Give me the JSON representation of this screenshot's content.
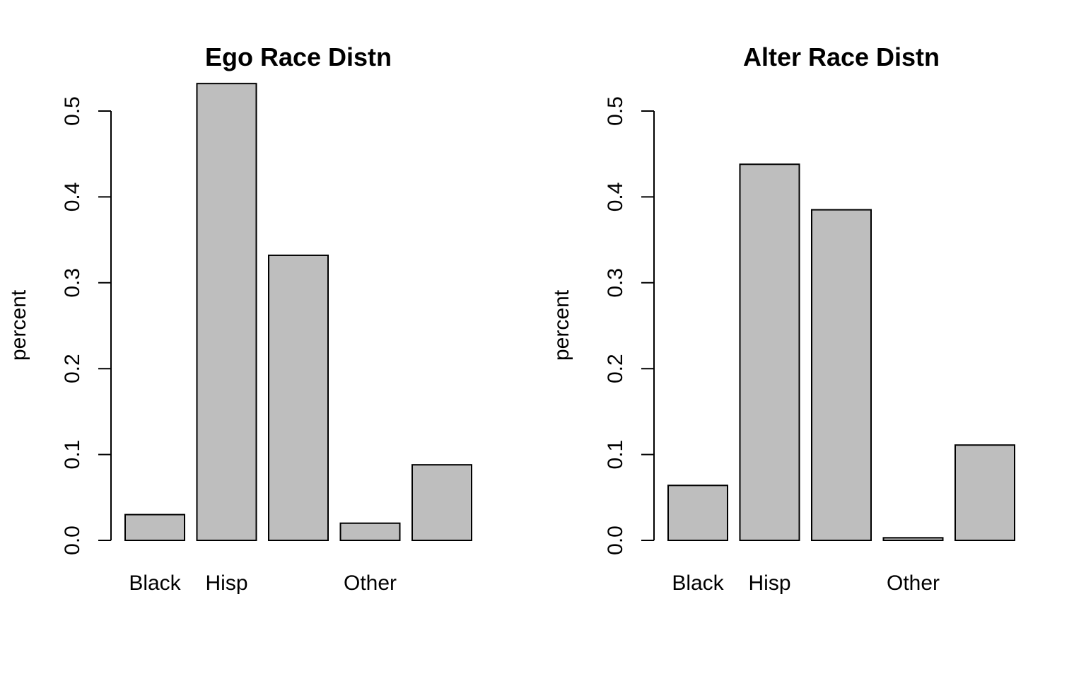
{
  "figure": {
    "background": "#ffffff"
  },
  "chart_data": [
    {
      "type": "bar",
      "title": "Ego Race Distn",
      "xlabel": "",
      "ylabel": "percent",
      "ylim": [
        0,
        0.5
      ],
      "yticks": [
        0.0,
        0.1,
        0.2,
        0.3,
        0.4,
        0.5
      ],
      "ytick_labels": [
        "0.0",
        "0.1",
        "0.2",
        "0.3",
        "0.4",
        "0.5"
      ],
      "categories": [
        "Black",
        "Hisp",
        "",
        "Other",
        ""
      ],
      "values": [
        0.03,
        0.532,
        0.332,
        0.02,
        0.088
      ],
      "bar_color": "#bebebe",
      "grid": false,
      "legend": "none"
    },
    {
      "type": "bar",
      "title": "Alter Race Distn",
      "xlabel": "",
      "ylabel": "percent",
      "ylim": [
        0,
        0.5
      ],
      "yticks": [
        0.0,
        0.1,
        0.2,
        0.3,
        0.4,
        0.5
      ],
      "ytick_labels": [
        "0.0",
        "0.1",
        "0.2",
        "0.3",
        "0.4",
        "0.5"
      ],
      "categories": [
        "Black",
        "Hisp",
        "",
        "Other",
        ""
      ],
      "values": [
        0.064,
        0.438,
        0.385,
        0.003,
        0.111
      ],
      "bar_color": "#bebebe",
      "grid": false,
      "legend": "none"
    }
  ]
}
